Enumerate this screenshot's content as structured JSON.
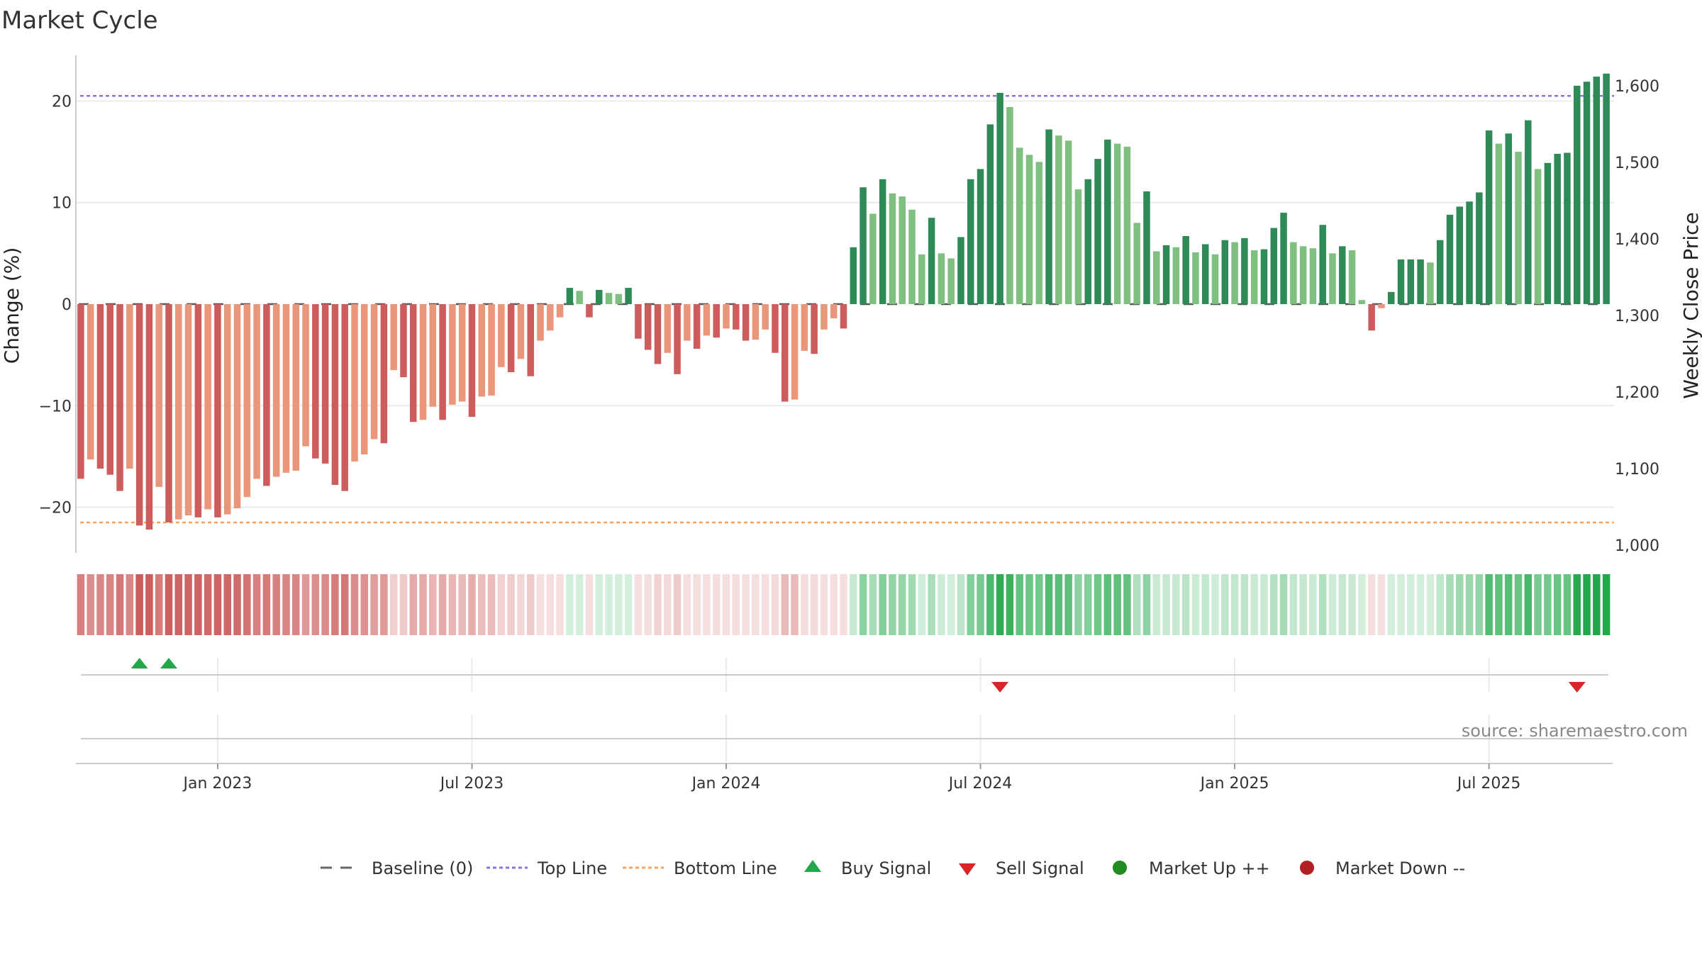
{
  "title": "Market Cycle",
  "source_note": "source: sharemaestro.com",
  "colors": {
    "neg_dark": "#cd5c5c",
    "neg_light": "#e9967a",
    "pos_dark": "#2e8b57",
    "pos_light": "#7fbf7f",
    "top_line": "#9370db",
    "bottom_line": "#f4a460",
    "baseline": "#555555",
    "buy": "#22a84a",
    "sell": "#d62728",
    "up_dot": "#228b22",
    "down_dot": "#b22222",
    "grid": "#ebebeb"
  },
  "chart_data": {
    "type": "bar",
    "title": "Market Cycle",
    "x_axis": {
      "tick_labels": [
        "Jan 2023",
        "Jul 2023",
        "Jan 2024",
        "Jul 2024",
        "Jan 2025",
        "Jul 2025"
      ],
      "tick_weeks": [
        14,
        40,
        66,
        92,
        118,
        144
      ]
    },
    "y_axis_left": {
      "label": "Change (%)",
      "range": [
        -24.5,
        24.5
      ],
      "ticks": [
        20,
        10,
        0,
        -10,
        -20
      ],
      "tick_labels": [
        "20",
        "10",
        "0",
        "−10",
        "−20"
      ]
    },
    "y_axis_right": {
      "label": "Weekly Close Price",
      "range": [
        990,
        1640
      ],
      "ticks": [
        1000,
        1100,
        1200,
        1300,
        1400,
        1500,
        1600
      ],
      "tick_labels": [
        "1,000",
        "1,100",
        "1,200",
        "1,300",
        "1,400",
        "1,500",
        "1,600"
      ]
    },
    "grid": true,
    "baseline": 0,
    "top_line": 20.5,
    "bottom_line": -21.5,
    "series": [
      {
        "values": [
          -17.2,
          -15.3,
          -16.2,
          -16.8,
          -18.4,
          -16.2,
          -21.8,
          -22.2,
          -18.0,
          -21.5,
          -21.2,
          -20.8,
          -21.0,
          -20.2,
          -21.0,
          -20.7,
          -20.1,
          -19.0,
          -17.2,
          -17.9,
          -17.0,
          -16.6,
          -16.4,
          -14.0,
          -15.2,
          -15.7,
          -17.8,
          -18.4,
          -15.5,
          -14.8,
          -13.3,
          -13.7,
          -6.5,
          -7.2,
          -11.6,
          -11.4,
          -10.1,
          -11.4,
          -9.9,
          -9.6,
          -11.1,
          -9.1,
          -9.0,
          -6.2,
          -6.7,
          -5.4,
          -7.1,
          -3.6,
          -2.6,
          -1.3,
          1.6,
          1.3,
          -1.3,
          1.4,
          1.1,
          1.0,
          1.6,
          -3.4,
          -4.5,
          -5.9,
          -4.8,
          -6.9,
          -3.6,
          -4.4,
          -3.1,
          -3.3,
          -2.4,
          -2.5,
          -3.6,
          -3.5,
          -2.5,
          -4.8,
          -9.6,
          -9.4,
          -4.6,
          -4.9,
          -2.5,
          -1.4,
          -2.4,
          5.6,
          11.5,
          8.9,
          12.3,
          10.9,
          10.6,
          9.3,
          4.9,
          8.5,
          5.0,
          4.5,
          6.6,
          12.3,
          13.3,
          17.7,
          20.8,
          19.4,
          15.4,
          14.7,
          14.0,
          17.2,
          16.6,
          16.1,
          11.3,
          12.3,
          14.3,
          16.2,
          15.8,
          15.5,
          8.0,
          11.1,
          5.2,
          5.8,
          5.6,
          6.7,
          5.1,
          5.9,
          4.9,
          6.3,
          6.1,
          6.5,
          5.3,
          5.4,
          7.5,
          9.0,
          6.1,
          5.7,
          5.5,
          7.8,
          5.0,
          5.7,
          5.3,
          0.4,
          -2.6,
          -0.4,
          1.2,
          4.4,
          4.4,
          4.4,
          4.1,
          6.3,
          8.8,
          9.6,
          10.1,
          11.0,
          17.1,
          15.8,
          16.8,
          15.0,
          18.1,
          13.3,
          13.9,
          14.8,
          14.9,
          21.5,
          21.9,
          22.4,
          22.7
        ]
      }
    ],
    "signals": {
      "buy_weeks": [
        6,
        9
      ],
      "sell_weeks": [
        94,
        153
      ]
    },
    "legend": {
      "placement": "bottom",
      "items": [
        "Baseline (0)",
        "Top Line",
        "Bottom Line",
        "Buy Signal",
        "Sell Signal",
        "Market Up ++",
        "Market Down --"
      ]
    }
  }
}
